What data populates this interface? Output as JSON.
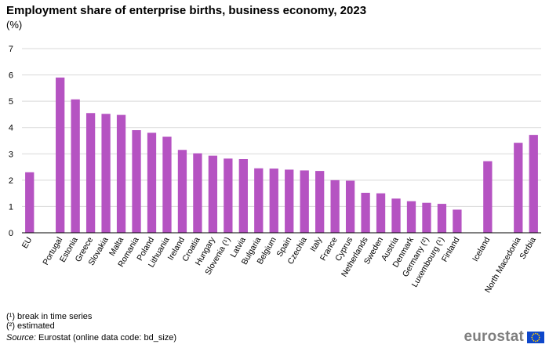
{
  "header": {
    "title": "Employment share of enterprise births, business economy, 2023",
    "subtitle": "(%)"
  },
  "footnotes": {
    "note1": "(¹) break in time series",
    "note2": "(²) estimated"
  },
  "source": {
    "label": "Source:",
    "text": " Eurostat (online data code: bd_size)"
  },
  "logo": {
    "text": "eurostat",
    "flag_icon": "eu-flag-icon"
  },
  "chart_data": {
    "type": "bar",
    "categories": [
      "EU",
      "",
      "Portugal",
      "Estonia",
      "Greece",
      "Slovakia",
      "Malta",
      "Romania",
      "Poland",
      "Lithuania",
      "Ireland",
      "Croatia",
      "Hungary",
      "Slovenia (¹)",
      "Latvia",
      "Bulgaria",
      "Belgium",
      "Spain",
      "Czechia",
      "Italy",
      "France",
      "Cyprus",
      "Netherlands",
      "Sweden",
      "Austria",
      "Denmark",
      "Germany (²)",
      "Luxembourg (¹)",
      "Finland",
      "",
      "Iceland",
      "",
      "North Macedonia",
      "Serbia"
    ],
    "values": [
      2.3,
      null,
      5.9,
      5.07,
      4.55,
      4.52,
      4.48,
      3.9,
      3.8,
      3.65,
      3.15,
      3.02,
      2.93,
      2.82,
      2.8,
      2.45,
      2.44,
      2.4,
      2.37,
      2.35,
      2.0,
      1.98,
      1.52,
      1.5,
      1.3,
      1.2,
      1.14,
      1.1,
      0.88,
      null,
      2.72,
      null,
      3.42,
      3.72
    ],
    "ylim": [
      0,
      7
    ],
    "yticks": [
      0,
      1,
      2,
      3,
      4,
      5,
      6,
      7
    ],
    "bar_color": "#b553c2",
    "grid": true,
    "xlabel": "",
    "ylabel": ""
  }
}
